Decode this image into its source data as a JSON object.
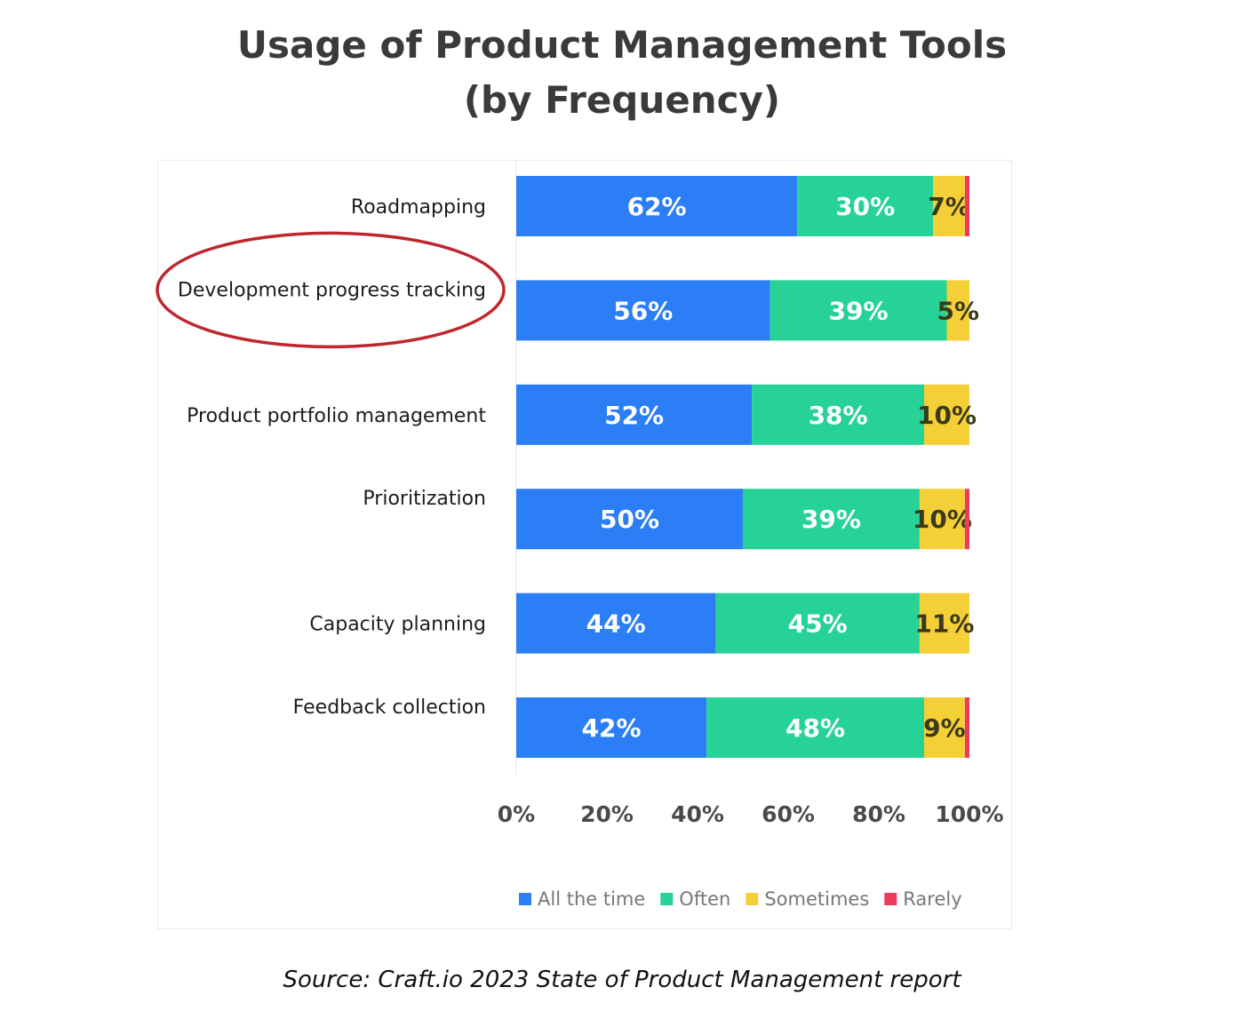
{
  "page": {
    "title_line1": "Usage of Product Management Tools",
    "title_line2": "(by Frequency)",
    "source": "Source: Craft.io 2023 State of Product Management report"
  },
  "highlight": {
    "shape": "ellipse",
    "color": "#c0262d",
    "target_category": "Development progress tracking"
  },
  "chart_data": {
    "type": "bar",
    "orientation": "horizontal",
    "stacked": true,
    "categories": [
      "Roadmapping",
      "Development progress tracking",
      "Product portfolio management",
      "Prioritization",
      "Capacity planning",
      "Feedback collection"
    ],
    "series": [
      {
        "name": "All the time",
        "color": "#2b7ef5",
        "values": [
          62,
          56,
          52,
          50,
          44,
          42
        ]
      },
      {
        "name": "Often",
        "color": "#27d296",
        "values": [
          30,
          39,
          38,
          39,
          45,
          48
        ]
      },
      {
        "name": "Sometimes",
        "color": "#f5cf38",
        "values": [
          7,
          5,
          10,
          10,
          11,
          9
        ]
      },
      {
        "name": "Rarely",
        "color": "#ee3b5d",
        "values": [
          1,
          0,
          0,
          1,
          0,
          1
        ]
      }
    ],
    "data_labels": [
      [
        "62%",
        "30%",
        "7%",
        ""
      ],
      [
        "56%",
        "39%",
        "5%",
        ""
      ],
      [
        "52%",
        "38%",
        "10%",
        ""
      ],
      [
        "50%",
        "39%",
        "10%",
        ""
      ],
      [
        "44%",
        "45%",
        "11%",
        ""
      ],
      [
        "42%",
        "48%",
        "9%",
        ""
      ]
    ],
    "x_ticks": [
      "0%",
      "20%",
      "40%",
      "60%",
      "80%",
      "100%"
    ],
    "xlim": [
      0,
      100
    ],
    "legend": [
      "All the time",
      "Often",
      "Sometimes",
      "Rarely"
    ],
    "legend_position": "bottom-right",
    "grid": false
  }
}
